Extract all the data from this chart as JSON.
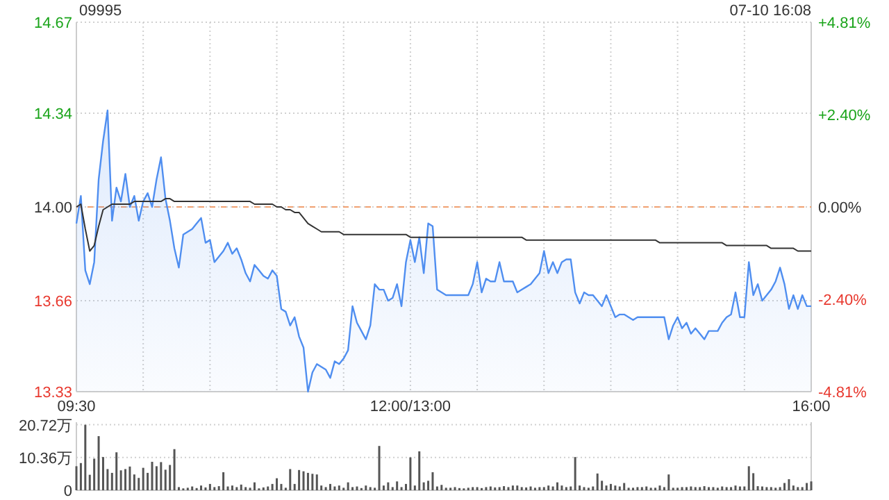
{
  "chart_data": [
    {
      "type": "line",
      "title": "09995",
      "subtitle": "07-10 16:08",
      "categories": [
        "09:30",
        null,
        null,
        null,
        null,
        null,
        null,
        null,
        null,
        null,
        null,
        null,
        null,
        null,
        null,
        null,
        null,
        null,
        null,
        null,
        null,
        null,
        null,
        null,
        null,
        null,
        null,
        null,
        null,
        null,
        null,
        null,
        null,
        null,
        null,
        null,
        null,
        null,
        null,
        null,
        null,
        null,
        null,
        null,
        null,
        null,
        null,
        null,
        null,
        null,
        null,
        null,
        null,
        null,
        null,
        null,
        null,
        null,
        null,
        null,
        null,
        null,
        null,
        null,
        null,
        null,
        null,
        null,
        null,
        null,
        null,
        null,
        null,
        null,
        null,
        "12:00/13:00",
        null,
        null,
        null,
        null,
        null,
        null,
        null,
        null,
        null,
        null,
        null,
        null,
        null,
        null,
        null,
        null,
        null,
        null,
        null,
        null,
        null,
        null,
        null,
        null,
        null,
        null,
        null,
        null,
        null,
        null,
        null,
        null,
        null,
        null,
        null,
        null,
        null,
        null,
        null,
        null,
        null,
        null,
        null,
        null,
        null,
        null,
        null,
        null,
        null,
        null,
        null,
        null,
        null,
        null,
        null,
        null,
        null,
        null,
        null,
        null,
        null,
        null,
        null,
        null,
        null,
        null,
        null,
        null,
        null,
        null,
        null,
        null,
        null,
        null,
        null,
        null,
        null,
        null,
        null,
        null,
        null,
        null,
        null,
        null,
        null,
        null,
        null,
        null,
        null,
        "16:00"
      ],
      "ylim": [
        13.33,
        14.67
      ],
      "yticks": [
        {
          "value": 13.33,
          "label": "13.33"
        },
        {
          "value": 13.66,
          "label": "13.66"
        },
        {
          "value": 14.0,
          "label": "14.00"
        },
        {
          "value": 14.34,
          "label": "14.34"
        },
        {
          "value": 14.67,
          "label": "14.67"
        }
      ],
      "y2lim": [
        -4.81,
        4.81
      ],
      "y2ticks": [
        {
          "value": -4.81,
          "label": "-4.81%"
        },
        {
          "value": -2.4,
          "label": "-2.40%"
        },
        {
          "value": 0,
          "label": "0.00%"
        },
        {
          "value": 2.4,
          "label": "+2.40%"
        },
        {
          "value": 4.81,
          "label": "+4.81%"
        }
      ],
      "grid": true,
      "ref_lines": [
        {
          "axis": "y",
          "value": 14.0,
          "label": null,
          "color": "#f0a070",
          "line_style": "dashed"
        }
      ],
      "series": [
        {
          "type": "area",
          "color": "#4f8ef0",
          "values": [
            13.94,
            14.04,
            13.77,
            13.72,
            13.8,
            14.1,
            14.24,
            14.35,
            13.95,
            14.07,
            14.02,
            14.12,
            14.0,
            14.04,
            13.95,
            14.02,
            14.05,
            14.0,
            14.1,
            14.18,
            14.03,
            13.95,
            13.85,
            13.78,
            13.9,
            13.91,
            13.92,
            13.94,
            13.96,
            13.87,
            13.88,
            13.8,
            13.82,
            13.84,
            13.87,
            13.83,
            13.85,
            13.81,
            13.76,
            13.73,
            13.79,
            13.77,
            13.75,
            13.74,
            13.77,
            13.75,
            13.63,
            13.62,
            13.57,
            13.6,
            13.53,
            13.49,
            13.33,
            13.4,
            13.43,
            13.42,
            13.41,
            13.38,
            13.44,
            13.43,
            13.45,
            13.48,
            13.64,
            13.58,
            13.55,
            13.52,
            13.57,
            13.72,
            13.7,
            13.7,
            13.66,
            13.67,
            13.72,
            13.64,
            13.8,
            13.88,
            13.8,
            13.89,
            13.76,
            13.94,
            13.93,
            13.7,
            13.69,
            13.68,
            13.68,
            13.68,
            13.68,
            13.68,
            13.68,
            13.72,
            13.8,
            13.69,
            13.74,
            13.73,
            13.73,
            13.8,
            13.73,
            13.73,
            13.73,
            13.69,
            13.7,
            13.71,
            13.72,
            13.74,
            13.76,
            13.84,
            13.76,
            13.8,
            13.76,
            13.8,
            13.81,
            13.81,
            13.69,
            13.65,
            13.69,
            13.68,
            13.68,
            13.66,
            13.64,
            13.68,
            13.64,
            13.6,
            13.61,
            13.61,
            13.6,
            13.59,
            13.6,
            13.6,
            13.6,
            13.6,
            13.6,
            13.6,
            13.6,
            13.52,
            13.57,
            13.6,
            13.56,
            13.58,
            13.54,
            13.56,
            13.54,
            13.52,
            13.55,
            13.55,
            13.55,
            13.58,
            13.6,
            13.61,
            13.69,
            13.6,
            13.6,
            13.8,
            13.68,
            13.72,
            13.66,
            13.68,
            13.7,
            13.73,
            13.78,
            13.72,
            13.63,
            13.68,
            13.63,
            13.68,
            13.64,
            13.64
          ]
        },
        {
          "type": "line",
          "color": "#333333",
          "values": [
            14.0,
            14.01,
            13.92,
            13.84,
            13.86,
            13.93,
            13.99,
            14.0,
            14.01,
            14.01,
            14.01,
            14.01,
            14.01,
            14.02,
            14.02,
            14.02,
            14.02,
            14.02,
            14.02,
            14.02,
            14.03,
            14.03,
            14.02,
            14.02,
            14.02,
            14.02,
            14.02,
            14.02,
            14.02,
            14.02,
            14.02,
            14.02,
            14.02,
            14.02,
            14.02,
            14.02,
            14.02,
            14.02,
            14.02,
            14.02,
            14.01,
            14.01,
            14.01,
            14.01,
            14.01,
            14.0,
            14.0,
            13.99,
            13.99,
            13.98,
            13.98,
            13.96,
            13.94,
            13.93,
            13.92,
            13.91,
            13.91,
            13.91,
            13.91,
            13.91,
            13.9,
            13.9,
            13.9,
            13.9,
            13.9,
            13.9,
            13.9,
            13.9,
            13.9,
            13.9,
            13.9,
            13.9,
            13.9,
            13.9,
            13.9,
            13.89,
            13.89,
            13.89,
            13.89,
            13.89,
            13.89,
            13.89,
            13.89,
            13.89,
            13.89,
            13.89,
            13.89,
            13.89,
            13.89,
            13.89,
            13.89,
            13.89,
            13.89,
            13.89,
            13.89,
            13.89,
            13.89,
            13.89,
            13.89,
            13.89,
            13.89,
            13.88,
            13.88,
            13.88,
            13.88,
            13.88,
            13.88,
            13.88,
            13.88,
            13.88,
            13.88,
            13.88,
            13.88,
            13.88,
            13.88,
            13.88,
            13.88,
            13.88,
            13.88,
            13.88,
            13.88,
            13.88,
            13.88,
            13.88,
            13.88,
            13.88,
            13.88,
            13.88,
            13.88,
            13.88,
            13.88,
            13.87,
            13.87,
            13.87,
            13.87,
            13.87,
            13.87,
            13.87,
            13.87,
            13.87,
            13.87,
            13.87,
            13.87,
            13.87,
            13.87,
            13.87,
            13.86,
            13.86,
            13.86,
            13.86,
            13.86,
            13.86,
            13.86,
            13.86,
            13.86,
            13.86,
            13.85,
            13.85,
            13.85,
            13.85,
            13.85,
            13.85,
            13.84,
            13.84,
            13.84,
            13.84
          ]
        }
      ]
    },
    {
      "type": "bar",
      "color": "#555555",
      "ylim": [
        0,
        21.5
      ],
      "categories": [
        null,
        null,
        null,
        null,
        null,
        null,
        null,
        null,
        null,
        null,
        null,
        null,
        null,
        null,
        null,
        null,
        null,
        null,
        null,
        null,
        null,
        null,
        null,
        null,
        null,
        null,
        null,
        null,
        null,
        null,
        null,
        null,
        null,
        null,
        null,
        null,
        null,
        null,
        null,
        null,
        null,
        null,
        null,
        null,
        null,
        null,
        null,
        null,
        null,
        null,
        null,
        null,
        null,
        null,
        null,
        null,
        null,
        null,
        null,
        null,
        null,
        null,
        null,
        null,
        null,
        null,
        null,
        null,
        null,
        null,
        null,
        null,
        null,
        null,
        null,
        null,
        null,
        null,
        null,
        null,
        null,
        null,
        null,
        null,
        null,
        null,
        null,
        null,
        null,
        null,
        null,
        null,
        null,
        null,
        null,
        null,
        null,
        null,
        null,
        null,
        null,
        null,
        null,
        null,
        null,
        null,
        null,
        null,
        null,
        null,
        null,
        null,
        null,
        null,
        null,
        null,
        null,
        null,
        null,
        null,
        null,
        null,
        null,
        null,
        null,
        null,
        null,
        null,
        null,
        null,
        null,
        null,
        null,
        null,
        null,
        null,
        null,
        null,
        null,
        null,
        null,
        null,
        null,
        null,
        null,
        null,
        null,
        null,
        null,
        null,
        null,
        null,
        null,
        null,
        null,
        null,
        null,
        null,
        null,
        null,
        null,
        null,
        null,
        null,
        null,
        null
      ],
      "yticks": [
        {
          "value": 0,
          "label": "0"
        },
        {
          "value": 10.36,
          "label": "10.36万"
        },
        {
          "value": 20.72,
          "label": "20.72万"
        }
      ],
      "tick_labels": "y",
      "grid": "y",
      "values": [
        7.6,
        8.6,
        20.7,
        4.9,
        10.0,
        17.1,
        10.5,
        6.7,
        5.5,
        12.0,
        6.3,
        6.7,
        7.5,
        5.0,
        3.9,
        7.1,
        5.5,
        9.0,
        7.6,
        8.9,
        6.5,
        8.0,
        13.0,
        1.0,
        0.6,
        0.8,
        1.2,
        0.7,
        1.5,
        0.9,
        2.0,
        1.0,
        1.3,
        5.7,
        1.2,
        1.5,
        1.0,
        1.8,
        1.0,
        0.8,
        2.5,
        0.6,
        0.9,
        1.2,
        2.0,
        3.8,
        2.0,
        0.8,
        6.7,
        2.0,
        6.4,
        6.0,
        5.5,
        5.2,
        5.0,
        1.5,
        1.0,
        2.0,
        1.2,
        1.5,
        0.8,
        2.5,
        1.0,
        1.2,
        0.7,
        1.5,
        1.0,
        0.8,
        14.0,
        1.5,
        2.5,
        1.0,
        2.8,
        1.0,
        2.0,
        10.4,
        1.5,
        12.3,
        2.5,
        3.0,
        5.7,
        1.2,
        1.7,
        0.8,
        0.8,
        1.0,
        0.7,
        0.6,
        0.8,
        1.0,
        1.0,
        0.7,
        1.0,
        1.2,
        0.9,
        1.0,
        1.3,
        1.0,
        1.5,
        1.5,
        1.0,
        0.9,
        1.2,
        0.8,
        1.0,
        1.0,
        1.5,
        1.2,
        2.5,
        1.5,
        1.0,
        1.2,
        10.5,
        1.5,
        1.0,
        0.8,
        1.2,
        5.3,
        3.0,
        1.5,
        2.0,
        1.5,
        1.2,
        2.3,
        0.8,
        0.8,
        1.0,
        1.0,
        1.2,
        0.8,
        0.8,
        1.5,
        1.0,
        5.0,
        0.8,
        0.8,
        1.0,
        1.0,
        1.2,
        1.0,
        1.0,
        1.3,
        1.0,
        1.0,
        0.8,
        1.2,
        1.0,
        1.0,
        1.5,
        1.2,
        1.2,
        7.6,
        5.4,
        1.3,
        1.2,
        1.0,
        1.0,
        0.8,
        1.0,
        2.3,
        3.5,
        1.5,
        1.0,
        1.0,
        2.3,
        2.8
      ]
    }
  ]
}
